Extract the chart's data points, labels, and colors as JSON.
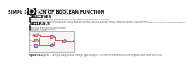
{
  "title_line1": "LABORATORY ACTIVITY NO. 7",
  "title_line2": "SIMPLIFICATION OF BOOLEAN FUNCTION",
  "pdf_label": "PDF",
  "objectives_title": "OBJECTIVES",
  "objectives": [
    "To construct a given circuit and make its truth table.",
    "To obtain the simplified boolean function of the given circuit by means of a K-map.",
    "To design and construct a circuit that implements the simplified boolean function using a minimum number of NAND gates.",
    "To verify that the original circuit and the one derived from the simplified boolean function produce identical logic-level outputs for all possible input combinations."
  ],
  "materials_title": "MATERIALS",
  "materials": [
    "Altera Digital Trainer",
    "two 7400 quad two-input NAND gate",
    "one 7410 tri-three input NAND gates",
    "Insulated connecting wires",
    "optional: scissors"
  ],
  "figure_caption_bold": "Figure 7-1.",
  "figure_caption_rest": " Circuit diagram — with pin assignments and logic gate analysis — for the implementation of the original circuit to be simplified.",
  "bg_color": "#ffffff",
  "pdf_bg": "#1a1a1a",
  "pdf_text": "#ffffff",
  "section_color": "#111111",
  "body_color": "#555555",
  "nand_color": "#e8a0b4",
  "nand_outline": "#b06070",
  "and_color": "#c8a0d4",
  "and_outline": "#8060a0",
  "wire_red": "#cc4444",
  "wire_gray": "#999999",
  "box_bg": "#f5f5f5",
  "box_border": "#aaaaaa",
  "input_label_color": "#cc3333",
  "output_label_color": "#3333cc"
}
